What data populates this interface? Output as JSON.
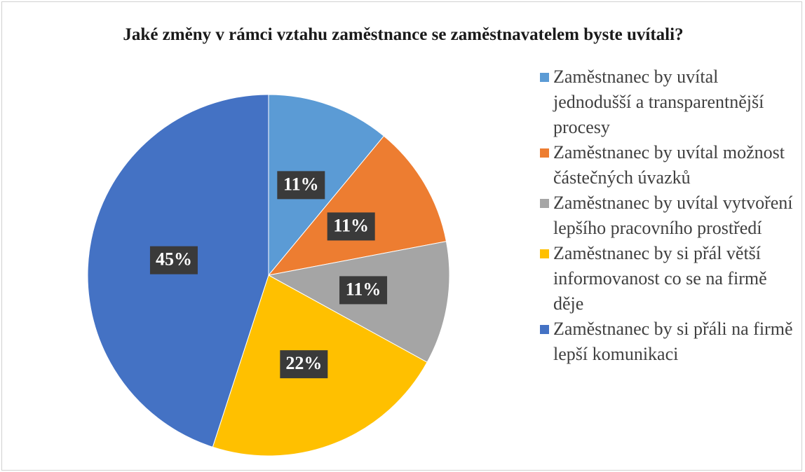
{
  "chart_data": {
    "type": "pie",
    "title": "Jaké změny v rámci vztahu zaměstnance se zaměstnavatelem byste uvítali?",
    "categories": [
      "Zaměstnanec by uvítal jednodušší a transparentnější procesy",
      "Zaměstnanec by uvítal možnost částečných úvazků",
      "Zaměstnanec by uvítal vytvoření lepšího pracovního prostředí",
      "Zaměstnanec by si přál větší informovanost co se na firmě děje",
      "Zaměstnanec by si přáli na firmě lepší komunikaci"
    ],
    "values": [
      11,
      11,
      11,
      22,
      45
    ],
    "value_labels": [
      "11%",
      "11%",
      "11%",
      "22%",
      "45%"
    ],
    "colors": [
      "#5b9bd5",
      "#ed7d31",
      "#a5a5a5",
      "#ffc000",
      "#4472c4"
    ],
    "legend": "right"
  }
}
